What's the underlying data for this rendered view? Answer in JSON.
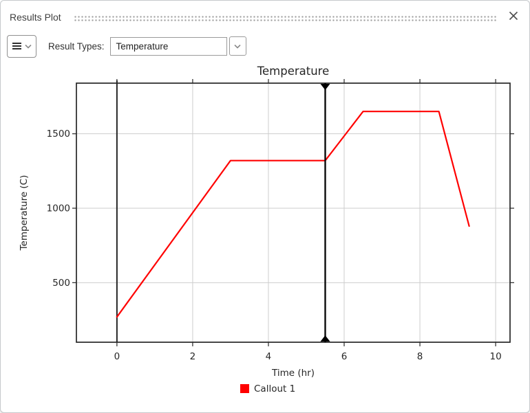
{
  "panel": {
    "title": "Results Plot"
  },
  "icons": {
    "menu": "hamburger",
    "menu_caret": "chevron-down",
    "combo_caret": "chevron-down",
    "close": "x-cross"
  },
  "toolbar": {
    "result_types_label": "Result Types:",
    "result_type_value": "Temperature"
  },
  "chart_data": {
    "type": "line",
    "title": "Temperature",
    "xlabel": "Time (hr)",
    "ylabel": "Temperature (C)",
    "xlim": [
      -1.07,
      10.38
    ],
    "ylim": [
      100,
      1840
    ],
    "xticks": [
      0,
      2,
      4,
      6,
      8,
      10
    ],
    "yticks": [
      500,
      1000,
      1500
    ],
    "grid": true,
    "grid_color": "#cdcdcd",
    "legend_position": "bottom-center",
    "series": [
      {
        "name": "Callout 1",
        "color": "#ff0000",
        "points": [
          [
            0,
            270
          ],
          [
            3,
            1320
          ],
          [
            5.5,
            1320
          ],
          [
            6.5,
            1650
          ],
          [
            8.5,
            1650
          ],
          [
            9.3,
            880
          ]
        ]
      }
    ],
    "annotations": {
      "zero_time_line": {
        "x": 0,
        "color": "#252525"
      },
      "cursor": {
        "x": 5.5,
        "color": "#0a0a0a",
        "markers": "triangles-top-bottom"
      }
    }
  }
}
